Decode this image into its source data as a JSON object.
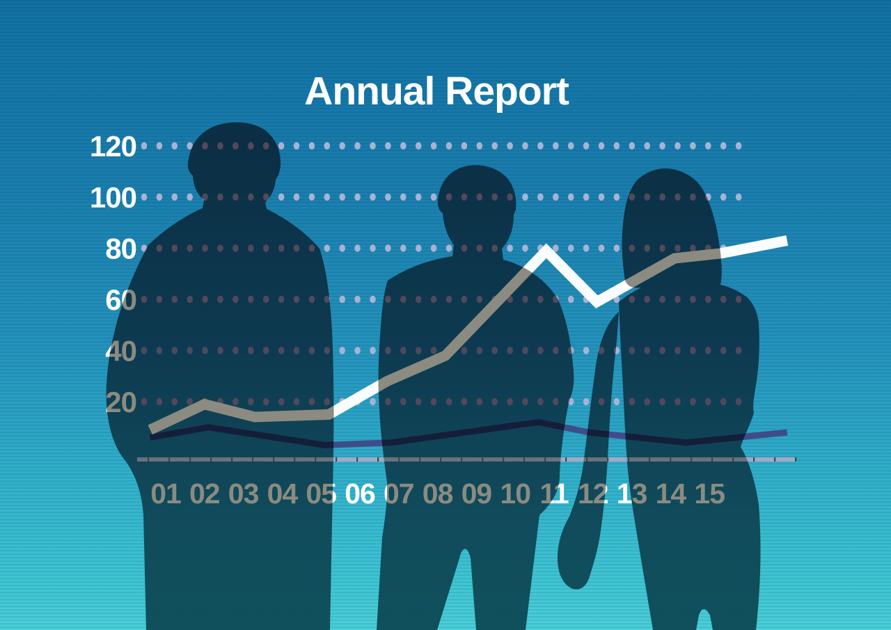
{
  "title": "Annual Report",
  "figures": [
    {
      "name": "businessman-left",
      "description": "silhouette of a man seen from behind, short hair, arms at sides"
    },
    {
      "name": "businessman-center",
      "description": "silhouette of a bald man seen from behind, arms folded"
    },
    {
      "name": "businesswoman-right",
      "description": "silhouette of a long-haired woman seen from behind, right arm hanging"
    }
  ],
  "colors": {
    "bg_top": "#1171a3",
    "bg_upper": "#1a7fae",
    "bg_mid": "#2494bd",
    "bg_lower": "#31b0cb",
    "bg_bottom": "#4bd0da",
    "silhouette_top": "#0b2d43",
    "silhouette_mid": "#0d3a50",
    "silhouette_bottom": "#0f505c",
    "dot_light": "#a8b2d4",
    "dot_dark": "#51495a",
    "line_primary_light": "#fafdff",
    "line_primary_dark": "#8b8b81",
    "line_secondary_light": "#3e4d89",
    "line_secondary_dark": "#141e3b",
    "axis_light": "#9fabc4",
    "axis_dark": "#6a727c",
    "axis_seam": "#3e4550",
    "label_light": "#ffffff",
    "label_dark": "#8b8b81",
    "title_color": "#ffffff"
  },
  "chart_data": {
    "type": "line",
    "title": "Annual Report",
    "x_labels": [
      "01",
      "02",
      "03",
      "04",
      "05",
      "06",
      "07",
      "08",
      "09",
      "10",
      "11",
      "12",
      "13",
      "14",
      "15"
    ],
    "y_ticks": [
      120,
      100,
      80,
      60,
      40,
      20
    ],
    "ylim": [
      0,
      130
    ],
    "xlabel": "",
    "ylabel": "",
    "grid": "dotted-horizontal",
    "legend": "none",
    "series": [
      {
        "name": "main-trend",
        "style": "thick line, white over background and warm gray over silhouettes",
        "points": [
          [
            0.6,
            9
          ],
          [
            2.0,
            19
          ],
          [
            3.3,
            14
          ],
          [
            5.2,
            15
          ],
          [
            6.7,
            28
          ],
          [
            8.2,
            38
          ],
          [
            10.8,
            79
          ],
          [
            12.1,
            59
          ],
          [
            14.1,
            76
          ],
          [
            15.3,
            78
          ],
          [
            17.0,
            83
          ]
        ]
      },
      {
        "name": "secondary-trend",
        "style": "thin dark navy line near baseline",
        "points": [
          [
            0.6,
            6
          ],
          [
            2.1,
            10
          ],
          [
            5.1,
            3
          ],
          [
            6.8,
            4
          ],
          [
            10.6,
            12
          ],
          [
            11.9,
            8
          ],
          [
            14.4,
            4
          ],
          [
            17.0,
            8
          ]
        ]
      }
    ]
  }
}
